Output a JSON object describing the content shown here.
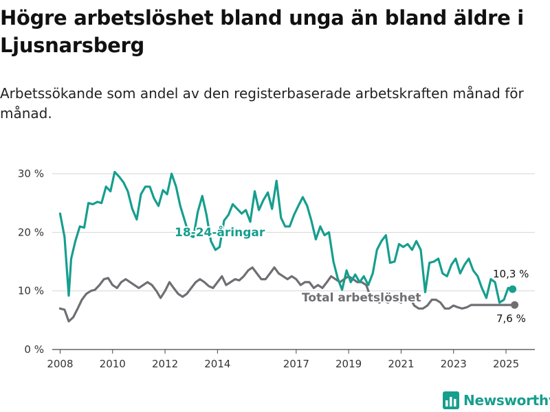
{
  "header": {
    "title": "Högre arbetslöshet bland unga än bland äldre i Ljusnarsberg",
    "subtitle": "Arbetssökande som andel av den registerbaserade arbetskraften månad för månad."
  },
  "brand": {
    "name": "Newsworthy",
    "icon": "bar-chart-logo-icon",
    "color": "#169e8e"
  },
  "chart_data": {
    "type": "line",
    "title": "Högre arbetslöshet bland unga än bland äldre i Ljusnarsberg",
    "subtitle": "Arbetssökande som andel av den registerbaserade arbetskraften månad för månad.",
    "ylim": [
      0,
      30
    ],
    "y_ticks": [
      0,
      10,
      20,
      30
    ],
    "y_tick_labels": [
      "0 %",
      "10 %",
      "20 %",
      "30 %"
    ],
    "xlim": [
      2007.7,
      2026.1
    ],
    "x_ticks": [
      2008,
      2010,
      2012,
      2014,
      2017,
      2019,
      2021,
      2023,
      2025
    ],
    "x_tick_labels": [
      "2008",
      "2010",
      "2012",
      "2014",
      "2017",
      "2019",
      "2021",
      "2023",
      "2025"
    ],
    "grid": "horizontal",
    "series": [
      {
        "name": "18-24-åringar",
        "color": "#169e8e",
        "end_label": "10,3 %",
        "x": [
          2008.0,
          2008.17,
          2008.33,
          2008.42,
          2008.58,
          2008.75,
          2008.92,
          2009.08,
          2009.25,
          2009.42,
          2009.58,
          2009.75,
          2009.92,
          2010.08,
          2010.25,
          2010.42,
          2010.58,
          2010.75,
          2010.92,
          2011.08,
          2011.25,
          2011.42,
          2011.58,
          2011.75,
          2011.92,
          2012.08,
          2012.25,
          2012.42,
          2012.58,
          2012.75,
          2012.92,
          2013.08,
          2013.25,
          2013.42,
          2013.58,
          2013.75,
          2013.92,
          2014.08,
          2014.25,
          2014.42,
          2014.58,
          2014.75,
          2014.92,
          2015.08,
          2015.25,
          2015.42,
          2015.58,
          2015.75,
          2015.92,
          2016.08,
          2016.25,
          2016.42,
          2016.58,
          2016.75,
          2016.92,
          2017.08,
          2017.25,
          2017.42,
          2017.58,
          2017.75,
          2017.92,
          2018.08,
          2018.25,
          2018.42,
          2018.58,
          2018.75,
          2018.92,
          2019.08,
          2019.25,
          2019.42,
          2019.58,
          2019.75,
          2019.92,
          2020.08,
          2020.25,
          2020.42,
          2020.58,
          2020.75,
          2020.92,
          2021.08,
          2021.25,
          2021.42,
          2021.58,
          2021.75,
          2021.92,
          2022.08,
          2022.25,
          2022.42,
          2022.58,
          2022.75,
          2022.92,
          2023.08,
          2023.25,
          2023.42,
          2023.58,
          2023.75,
          2023.92,
          2024.08,
          2024.25,
          2024.42,
          2024.58,
          2024.75,
          2024.92,
          2025.08,
          2025.25
        ],
        "y": [
          23.2,
          19.2,
          9.2,
          15.5,
          18.5,
          21.0,
          20.8,
          25.0,
          24.8,
          25.2,
          25.0,
          27.8,
          27.0,
          30.3,
          29.5,
          28.5,
          27.0,
          24.0,
          22.2,
          26.5,
          27.8,
          27.8,
          25.8,
          24.5,
          27.2,
          26.5,
          30.0,
          27.8,
          24.5,
          22.0,
          19.5,
          19.2,
          23.5,
          26.2,
          23.0,
          18.5,
          17.0,
          17.5,
          22.0,
          23.0,
          24.8,
          24.0,
          23.2,
          23.8,
          21.8,
          27.0,
          23.8,
          25.5,
          26.8,
          24.0,
          28.8,
          22.5,
          21.0,
          21.0,
          23.0,
          24.5,
          26.0,
          24.5,
          22.0,
          18.8,
          21.0,
          19.5,
          20.0,
          15.0,
          12.2,
          10.2,
          13.5,
          11.5,
          12.8,
          11.5,
          12.5,
          11.0,
          13.0,
          17.0,
          18.5,
          19.5,
          14.8,
          15.0,
          18.0,
          17.5,
          18.0,
          17.0,
          18.5,
          17.0,
          9.8,
          14.8,
          15.0,
          15.5,
          13.0,
          12.5,
          14.5,
          15.5,
          13.0,
          14.5,
          15.5,
          13.5,
          12.5,
          10.5,
          8.8,
          12.0,
          11.5,
          8.0,
          8.5,
          10.5,
          10.3
        ]
      },
      {
        "name": "Total arbetslöshet",
        "color": "#6e6e73",
        "end_label": "7,6 %",
        "x": [
          2008.0,
          2008.17,
          2008.33,
          2008.5,
          2008.67,
          2008.83,
          2009.0,
          2009.17,
          2009.33,
          2009.5,
          2009.67,
          2009.83,
          2010.0,
          2010.17,
          2010.33,
          2010.5,
          2010.67,
          2010.83,
          2011.0,
          2011.17,
          2011.33,
          2011.5,
          2011.67,
          2011.83,
          2012.0,
          2012.17,
          2012.33,
          2012.5,
          2012.67,
          2012.83,
          2013.0,
          2013.17,
          2013.33,
          2013.5,
          2013.67,
          2013.83,
          2014.0,
          2014.17,
          2014.33,
          2014.5,
          2014.67,
          2014.83,
          2015.0,
          2015.17,
          2015.33,
          2015.5,
          2015.67,
          2015.83,
          2016.0,
          2016.17,
          2016.33,
          2016.5,
          2016.67,
          2016.83,
          2017.0,
          2017.17,
          2017.33,
          2017.5,
          2017.67,
          2017.83,
          2018.0,
          2018.17,
          2018.33,
          2018.5,
          2018.67,
          2018.83,
          2019.0,
          2019.17,
          2019.33,
          2019.5,
          2019.67,
          2019.83,
          2020.0,
          2020.17,
          2020.33,
          2020.5,
          2020.67,
          2020.83,
          2021.0,
          2021.17,
          2021.33,
          2021.5,
          2021.67,
          2021.83,
          2022.0,
          2022.17,
          2022.33,
          2022.5,
          2022.67,
          2022.83,
          2023.0,
          2023.17,
          2023.33,
          2023.5,
          2023.67,
          2023.83,
          2024.0,
          2024.17,
          2024.33,
          2024.5,
          2024.67,
          2024.83,
          2025.0,
          2025.17,
          2025.33
        ],
        "y": [
          7.0,
          6.8,
          4.8,
          5.5,
          7.0,
          8.5,
          9.5,
          10.0,
          10.2,
          11.0,
          12.0,
          12.2,
          11.0,
          10.5,
          11.5,
          12.0,
          11.5,
          11.0,
          10.5,
          11.0,
          11.5,
          11.0,
          10.0,
          8.8,
          10.0,
          11.5,
          10.5,
          9.5,
          9.0,
          9.5,
          10.5,
          11.5,
          12.0,
          11.5,
          10.8,
          10.5,
          11.5,
          12.5,
          11.0,
          11.5,
          12.0,
          11.8,
          12.5,
          13.5,
          14.0,
          13.0,
          12.0,
          12.0,
          13.0,
          14.0,
          13.0,
          12.5,
          12.0,
          12.5,
          12.0,
          11.0,
          11.5,
          11.5,
          10.5,
          11.0,
          10.5,
          11.5,
          12.5,
          12.0,
          11.5,
          12.0,
          12.5,
          12.0,
          11.5,
          11.5,
          11.0,
          9.0,
          8.5,
          8.0,
          8.5,
          8.0,
          8.5,
          8.5,
          8.0,
          9.0,
          9.0,
          7.5,
          7.0,
          7.0,
          7.5,
          8.5,
          8.5,
          8.0,
          7.0,
          7.0,
          7.5,
          7.2,
          7.0,
          7.2,
          7.6,
          7.6,
          7.6,
          7.6,
          7.6,
          7.6,
          7.6,
          7.6,
          7.6,
          7.6,
          7.6
        ]
      }
    ]
  }
}
